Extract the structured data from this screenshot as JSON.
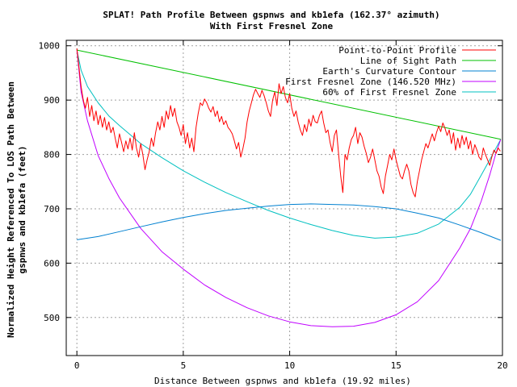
{
  "chart_data": {
    "type": "line",
    "title_line1": "SPLAT! Path Profile Between gspnws and kb1efa (162.37° azimuth)",
    "title_line2": "With First Fresnel Zone",
    "xlabel": "Distance Between gspnws and kb1efa (19.92 miles)",
    "ylabel_line1": "Normalized Height Referenced To LOS Path Between",
    "ylabel_line2": "gspnws and kb1efa (feet)",
    "xlim": [
      -0.5,
      20
    ],
    "ylim": [
      430,
      1010
    ],
    "xticks": [
      "0",
      "5",
      "10",
      "15",
      "20"
    ],
    "yticks": [
      "500",
      "600",
      "700",
      "800",
      "900",
      "1000"
    ],
    "grid": true,
    "legend_position": "top-right",
    "series": [
      {
        "name": "Point-to-Point Profile",
        "color": "#ff0000",
        "x": [
          0,
          0.1,
          0.2,
          0.3,
          0.4,
          0.5,
          0.6,
          0.7,
          0.8,
          0.9,
          1.0,
          1.1,
          1.2,
          1.3,
          1.4,
          1.5,
          1.6,
          1.7,
          1.8,
          1.9,
          2.0,
          2.1,
          2.2,
          2.3,
          2.4,
          2.5,
          2.6,
          2.7,
          2.8,
          2.9,
          3.0,
          3.1,
          3.2,
          3.3,
          3.4,
          3.5,
          3.6,
          3.7,
          3.8,
          3.9,
          4.0,
          4.1,
          4.2,
          4.3,
          4.4,
          4.5,
          4.6,
          4.7,
          4.8,
          4.9,
          5.0,
          5.1,
          5.2,
          5.3,
          5.4,
          5.5,
          5.6,
          5.7,
          5.8,
          5.9,
          6.0,
          6.1,
          6.2,
          6.3,
          6.4,
          6.5,
          6.6,
          6.7,
          6.8,
          6.9,
          7.0,
          7.1,
          7.2,
          7.3,
          7.4,
          7.5,
          7.6,
          7.7,
          7.8,
          7.9,
          8.0,
          8.1,
          8.2,
          8.3,
          8.4,
          8.5,
          8.6,
          8.7,
          8.8,
          8.9,
          9.0,
          9.1,
          9.2,
          9.3,
          9.4,
          9.5,
          9.6,
          9.7,
          9.8,
          9.9,
          10.0,
          10.1,
          10.2,
          10.3,
          10.4,
          10.5,
          10.6,
          10.7,
          10.8,
          10.9,
          11.0,
          11.1,
          11.2,
          11.3,
          11.4,
          11.5,
          11.6,
          11.7,
          11.8,
          11.9,
          12.0,
          12.1,
          12.2,
          12.3,
          12.4,
          12.5,
          12.6,
          12.7,
          12.8,
          12.9,
          13.0,
          13.1,
          13.2,
          13.3,
          13.4,
          13.5,
          13.6,
          13.7,
          13.8,
          13.9,
          14.0,
          14.1,
          14.2,
          14.3,
          14.4,
          14.5,
          14.6,
          14.7,
          14.8,
          14.9,
          15.0,
          15.1,
          15.2,
          15.3,
          15.4,
          15.5,
          15.6,
          15.7,
          15.8,
          15.9,
          16.0,
          16.1,
          16.2,
          16.3,
          16.4,
          16.5,
          16.6,
          16.7,
          16.8,
          16.9,
          17.0,
          17.1,
          17.2,
          17.3,
          17.4,
          17.5,
          17.6,
          17.7,
          17.8,
          17.9,
          18.0,
          18.1,
          18.2,
          18.3,
          18.4,
          18.5,
          18.6,
          18.7,
          18.8,
          18.9,
          19.0,
          19.1,
          19.2,
          19.3,
          19.4,
          19.5,
          19.6,
          19.7,
          19.8,
          19.9
        ],
        "y": [
          995,
          960,
          925,
          900,
          885,
          905,
          870,
          890,
          862,
          880,
          855,
          872,
          850,
          868,
          845,
          860,
          840,
          850,
          830,
          812,
          838,
          822,
          805,
          825,
          810,
          830,
          808,
          840,
          812,
          795,
          820,
          800,
          772,
          790,
          805,
          830,
          815,
          840,
          860,
          845,
          870,
          850,
          880,
          865,
          890,
          870,
          885,
          860,
          850,
          835,
          855,
          820,
          840,
          812,
          830,
          805,
          850,
          875,
          895,
          890,
          902,
          895,
          885,
          878,
          888,
          870,
          880,
          860,
          870,
          855,
          862,
          850,
          845,
          838,
          825,
          810,
          822,
          795,
          810,
          830,
          860,
          880,
          895,
          910,
          920,
          912,
          905,
          918,
          908,
          895,
          880,
          870,
          900,
          915,
          890,
          930,
          912,
          925,
          905,
          895,
          912,
          885,
          870,
          880,
          860,
          845,
          835,
          855,
          842,
          865,
          852,
          872,
          860,
          858,
          872,
          880,
          858,
          840,
          845,
          822,
          805,
          835,
          845,
          800,
          760,
          730,
          800,
          790,
          812,
          828,
          835,
          850,
          820,
          840,
          832,
          815,
          802,
          785,
          795,
          810,
          790,
          770,
          760,
          740,
          728,
          760,
          780,
          800,
          790,
          810,
          790,
          775,
          760,
          755,
          770,
          782,
          770,
          745,
          730,
          722,
          750,
          770,
          790,
          805,
          820,
          812,
          825,
          838,
          825,
          840,
          852,
          842,
          858,
          848,
          835,
          845,
          820,
          840,
          808,
          830,
          812,
          835,
          818,
          832,
          810,
          825,
          800,
          818,
          808,
          795,
          790,
          812,
          800,
          790,
          780,
          795,
          808,
          802,
          812,
          806
        ]
      },
      {
        "name": "Line of Sight Path",
        "color": "#00c000",
        "x": [
          0,
          19.92
        ],
        "y": [
          992,
          828
        ]
      },
      {
        "name": "Earth's Curvature Contour",
        "color": "#0080d0",
        "x": [
          0,
          1,
          2,
          3,
          4,
          5,
          6,
          7,
          8,
          9,
          10,
          11,
          12,
          13,
          14,
          15,
          16,
          17,
          18,
          19,
          19.92
        ],
        "y": [
          643,
          649,
          658,
          667,
          676,
          684,
          691,
          697,
          701,
          705,
          708,
          709,
          708,
          707,
          704,
          700,
          692,
          683,
          670,
          656,
          642
        ]
      },
      {
        "name": "First Fresnel Zone (146.520 MHz)",
        "color": "#c000ff",
        "x": [
          0,
          0.2,
          0.5,
          1,
          1.5,
          2,
          3,
          4,
          5,
          6,
          7,
          8,
          9,
          10,
          11,
          12,
          13,
          14,
          15,
          16,
          17,
          18,
          18.5,
          19,
          19.4,
          19.7,
          19.92
        ],
        "y": [
          992,
          915,
          862,
          798,
          756,
          720,
          664,
          621,
          589,
          560,
          537,
          518,
          503,
          492,
          485,
          483,
          484,
          491,
          505,
          529,
          568,
          628,
          664,
          714,
          762,
          803,
          828
        ]
      },
      {
        "name": "60% of First Fresnel Zone",
        "color": "#00c0c0",
        "x": [
          0,
          0.2,
          0.5,
          1,
          1.5,
          2,
          3,
          4,
          5,
          6,
          7,
          8,
          9,
          10,
          11,
          12,
          13,
          14,
          15,
          16,
          17,
          18,
          18.5,
          19,
          19.4,
          19.7,
          19.92
        ],
        "y": [
          992,
          955,
          925,
          895,
          871,
          853,
          820,
          794,
          770,
          749,
          730,
          713,
          697,
          683,
          671,
          660,
          651,
          646,
          648,
          655,
          672,
          703,
          727,
          762,
          790,
          812,
          828
        ]
      }
    ]
  }
}
